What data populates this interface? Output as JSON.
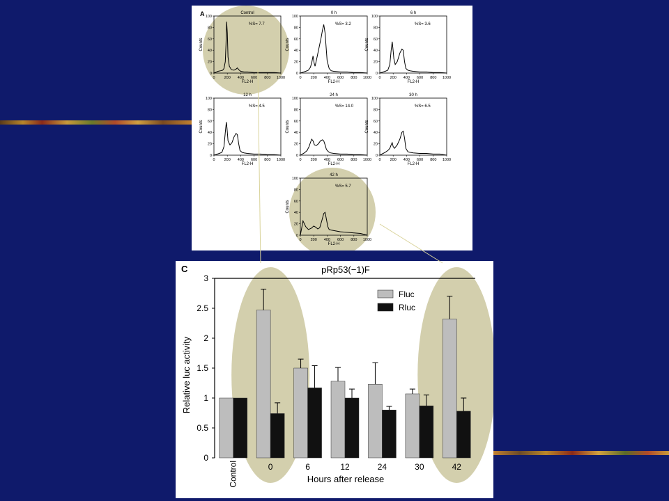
{
  "colors": {
    "background": "#0f1a6b",
    "panel": "#ffffff",
    "highlight": "#b8b27a",
    "fluc": "#bdbdbd",
    "rluc": "#111111"
  },
  "chart_data": [
    {
      "type": "area",
      "panel_label": "A",
      "grid": false,
      "xlabel": "FL2-H",
      "ylabel": "Counts",
      "xlim": [
        0,
        1000
      ],
      "ylim": [
        0,
        100
      ],
      "xticks": [
        "0",
        "200",
        "400",
        "600",
        "800",
        "1000"
      ],
      "yticks": [
        "0",
        "20",
        "40",
        "60",
        "80",
        "100"
      ],
      "histograms": [
        {
          "title": "Control",
          "s_label": "%S= 7.7",
          "highlighted": true,
          "x": [
            0,
            60,
            100,
            130,
            150,
            170,
            180,
            190,
            200,
            210,
            230,
            260,
            300,
            330,
            350,
            370,
            400,
            450,
            500,
            600,
            700,
            800,
            900,
            1000
          ],
          "y": [
            0,
            3,
            4,
            5,
            8,
            20,
            50,
            90,
            70,
            28,
            12,
            6,
            5,
            7,
            9,
            6,
            3,
            2,
            2,
            1,
            1,
            1,
            1,
            0
          ]
        },
        {
          "title": "0 h",
          "s_label": "%S= 3.2",
          "highlighted": false,
          "x": [
            0,
            80,
            120,
            150,
            170,
            190,
            205,
            220,
            250,
            280,
            310,
            330,
            350,
            370,
            385,
            400,
            430,
            460,
            500,
            600,
            700,
            800,
            900,
            1000
          ],
          "y": [
            0,
            3,
            5,
            10,
            18,
            30,
            18,
            12,
            28,
            45,
            62,
            75,
            85,
            70,
            45,
            22,
            8,
            4,
            3,
            2,
            2,
            1,
            1,
            0
          ]
        },
        {
          "title": "6 h",
          "s_label": "%S= 3.6",
          "highlighted": false,
          "x": [
            0,
            80,
            120,
            150,
            170,
            185,
            195,
            210,
            230,
            260,
            300,
            330,
            350,
            370,
            390,
            420,
            450,
            500,
            600,
            700,
            800,
            900,
            1000
          ],
          "y": [
            0,
            3,
            5,
            15,
            40,
            55,
            45,
            25,
            15,
            20,
            35,
            42,
            40,
            20,
            8,
            5,
            4,
            3,
            2,
            2,
            1,
            1,
            0
          ]
        },
        {
          "title": "12 h",
          "s_label": "%S= 4.5",
          "highlighted": false,
          "x": [
            0,
            80,
            120,
            150,
            170,
            185,
            195,
            210,
            240,
            270,
            300,
            330,
            350,
            370,
            390,
            420,
            450,
            500,
            600,
            700,
            800,
            900,
            1000
          ],
          "y": [
            0,
            3,
            5,
            15,
            40,
            58,
            48,
            25,
            18,
            22,
            32,
            38,
            36,
            20,
            8,
            5,
            4,
            3,
            2,
            2,
            1,
            1,
            0
          ]
        },
        {
          "title": "24 h",
          "s_label": "%S= 14.0",
          "highlighted": false,
          "x": [
            0,
            60,
            100,
            130,
            150,
            170,
            190,
            210,
            240,
            270,
            300,
            330,
            350,
            370,
            390,
            420,
            450,
            500,
            600,
            700,
            800,
            900,
            1000
          ],
          "y": [
            0,
            4,
            8,
            15,
            22,
            28,
            25,
            18,
            17,
            20,
            25,
            27,
            25,
            18,
            10,
            6,
            4,
            3,
            2,
            2,
            1,
            1,
            0
          ]
        },
        {
          "title": "30 h",
          "s_label": "%S= 6.5",
          "highlighted": false,
          "x": [
            0,
            80,
            120,
            150,
            170,
            185,
            200,
            220,
            260,
            300,
            330,
            350,
            370,
            390,
            420,
            450,
            500,
            600,
            700,
            800,
            900,
            1000
          ],
          "y": [
            0,
            5,
            8,
            12,
            18,
            22,
            15,
            12,
            18,
            28,
            40,
            42,
            30,
            12,
            6,
            5,
            4,
            3,
            3,
            2,
            2,
            0
          ]
        },
        {
          "title": "42 h",
          "s_label": "%S= 5.7",
          "highlighted": true,
          "x": [
            0,
            40,
            80,
            120,
            160,
            200,
            230,
            260,
            290,
            320,
            350,
            370,
            390,
            410,
            430,
            460,
            500,
            600,
            700,
            800,
            900,
            1000
          ],
          "y": [
            0,
            25,
            15,
            10,
            12,
            16,
            14,
            11,
            13,
            25,
            38,
            40,
            28,
            15,
            10,
            9,
            8,
            6,
            5,
            4,
            3,
            0
          ]
        }
      ]
    },
    {
      "type": "bar",
      "panel_label": "C",
      "title": "pRp53(−1)F",
      "xlabel": "Hours after release",
      "ylabel": "Relative luc activity",
      "ylim": [
        0,
        3
      ],
      "yticks": [
        "0",
        "0.5",
        "1",
        "1.5",
        "2",
        "2.5",
        "3"
      ],
      "categories": [
        "Control",
        "0",
        "6",
        "12",
        "24",
        "30",
        "42"
      ],
      "grid": false,
      "legend_position": "top-right",
      "highlighted_categories": [
        "0",
        "42"
      ],
      "series": [
        {
          "name": "Fluc",
          "color": "#bdbdbd",
          "values": [
            1.0,
            2.47,
            1.5,
            1.28,
            1.23,
            1.07,
            2.32
          ],
          "errors": [
            0.0,
            0.35,
            0.15,
            0.23,
            0.36,
            0.08,
            0.38
          ]
        },
        {
          "name": "Rluc",
          "color": "#111111",
          "values": [
            1.0,
            0.74,
            1.17,
            1.0,
            0.8,
            0.87,
            0.78
          ],
          "errors": [
            0.0,
            0.18,
            0.37,
            0.15,
            0.06,
            0.18,
            0.22
          ]
        }
      ]
    }
  ]
}
